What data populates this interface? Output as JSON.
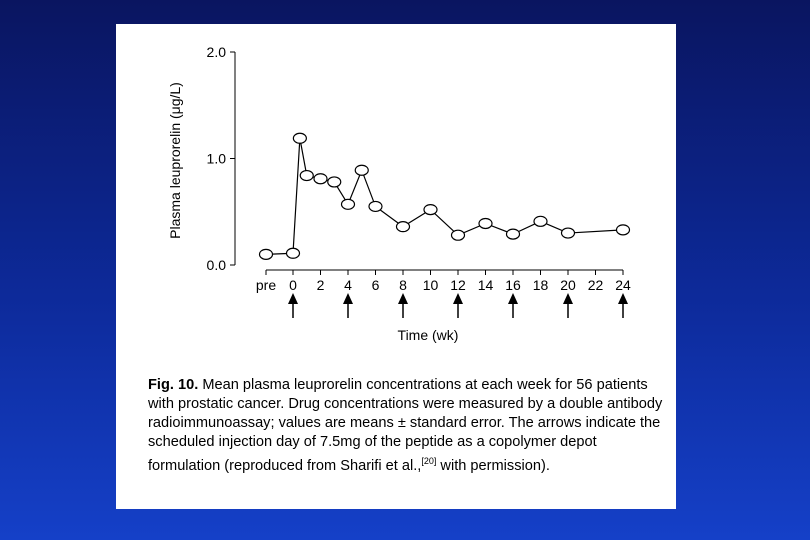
{
  "chart_data": {
    "type": "line",
    "ylabel": "Plasma leuprorelin (μg/L)",
    "xlabel": "Time (wk)",
    "ylim": [
      0,
      2
    ],
    "yticks": [
      "0.0",
      "1.0",
      "2.0"
    ],
    "ytick_values": [
      0,
      1,
      2
    ],
    "xtick_labels": [
      "pre",
      "0",
      "2",
      "4",
      "6",
      "8",
      "10",
      "12",
      "14",
      "16",
      "18",
      "20",
      "22",
      "24"
    ],
    "xtick_values": [
      "pre",
      0,
      2,
      4,
      6,
      8,
      10,
      12,
      14,
      16,
      18,
      20,
      22,
      24
    ],
    "series": [
      {
        "name": "Mean plasma leuprorelin",
        "points": [
          {
            "x": "pre",
            "y": 0.1
          },
          {
            "x": 0,
            "y": 0.11
          },
          {
            "x": 0.5,
            "y": 1.19
          },
          {
            "x": 1,
            "y": 0.84
          },
          {
            "x": 2,
            "y": 0.81
          },
          {
            "x": 3,
            "y": 0.78
          },
          {
            "x": 4,
            "y": 0.57
          },
          {
            "x": 5,
            "y": 0.89
          },
          {
            "x": 6,
            "y": 0.55
          },
          {
            "x": 8,
            "y": 0.36
          },
          {
            "x": 10,
            "y": 0.52
          },
          {
            "x": 12,
            "y": 0.28
          },
          {
            "x": 14,
            "y": 0.39
          },
          {
            "x": 16,
            "y": 0.29
          },
          {
            "x": 18,
            "y": 0.41
          },
          {
            "x": 20,
            "y": 0.3
          },
          {
            "x": 24,
            "y": 0.33
          }
        ]
      }
    ],
    "injection_arrows_at_weeks": [
      0,
      4,
      8,
      12,
      16,
      20,
      24
    ]
  },
  "caption": {
    "label": "Fig. 10.",
    "text_before_ref": "Mean plasma leuprorelin concentrations at each week for 56 patients with prostatic cancer. Drug concentrations were measured by a double antibody radioimmunoassay; values are means ± standard error. The arrows indicate the scheduled injection day of 7.5mg of the peptide as a copolymer depot formulation (reproduced from Sharifi et al.,",
    "ref": "[20]",
    "text_after_ref": " with permission)."
  }
}
